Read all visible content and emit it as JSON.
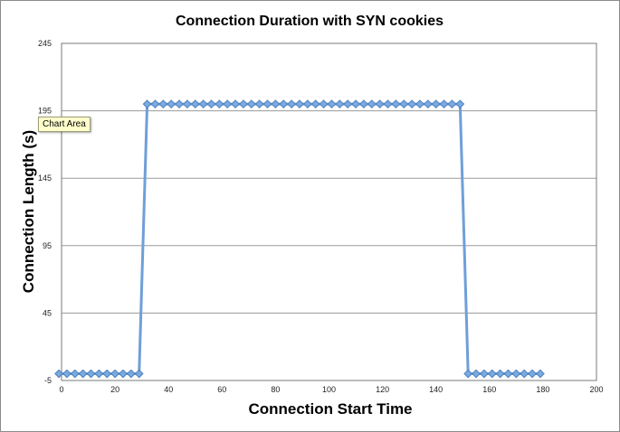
{
  "tooltip": "Chart Area",
  "colors": {
    "series": "#6f9fd8",
    "marker_fill": "#7aaae0",
    "marker_stroke": "#4f81bd",
    "grid": "#9a9a9a"
  },
  "chart_data": {
    "type": "line",
    "title": "Connection Duration with SYN cookies",
    "xlabel": "Connection Start Time",
    "ylabel": "Connection Length (s)",
    "xlim": [
      0,
      200
    ],
    "ylim": [
      -5,
      245
    ],
    "xticks": [
      0,
      20,
      40,
      60,
      80,
      100,
      120,
      140,
      160,
      180,
      200
    ],
    "yticks": [
      -5,
      45,
      95,
      145,
      195,
      245
    ],
    "grid": "horizontal",
    "legend": "none",
    "series": [
      {
        "x": [
          -1,
          2,
          5,
          8,
          11,
          14,
          17,
          20,
          23,
          26,
          29,
          32,
          35,
          38,
          41,
          44,
          47,
          50,
          53,
          56,
          59,
          62,
          65,
          68,
          71,
          74,
          77,
          80,
          83,
          86,
          89,
          92,
          95,
          98,
          101,
          104,
          107,
          110,
          113,
          116,
          119,
          122,
          125,
          128,
          131,
          134,
          137,
          140,
          143,
          146,
          149,
          152,
          155,
          158,
          161,
          164,
          167,
          170,
          173,
          176,
          179
        ],
        "y": [
          0,
          0,
          0,
          0,
          0,
          0,
          0,
          0,
          0,
          0,
          0,
          200,
          200,
          200,
          200,
          200,
          200,
          200,
          200,
          200,
          200,
          200,
          200,
          200,
          200,
          200,
          200,
          200,
          200,
          200,
          200,
          200,
          200,
          200,
          200,
          200,
          200,
          200,
          200,
          200,
          200,
          200,
          200,
          200,
          200,
          200,
          200,
          200,
          200,
          200,
          200,
          0,
          0,
          0,
          0,
          0,
          0,
          0,
          0,
          0,
          0
        ]
      }
    ]
  }
}
